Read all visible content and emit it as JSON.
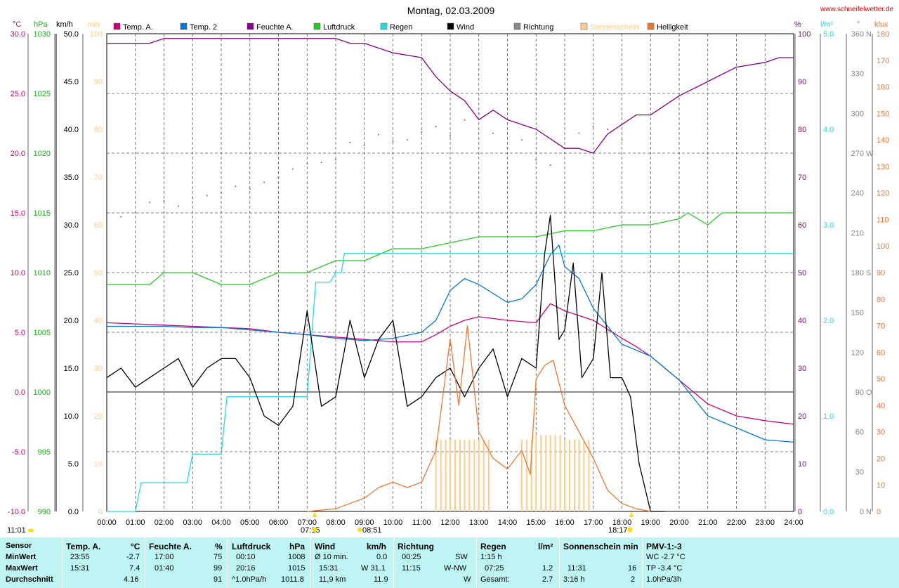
{
  "header": {
    "title": "Montag, 02.03.2009",
    "site": "www.schneifelwetter.de"
  },
  "unit_headers": {
    "temp": "°C",
    "hpa": "hPa",
    "kmh": "km/h",
    "min": "min",
    "percent": "%",
    "rain": "l/m²",
    "deg": "°",
    "klux": "klux"
  },
  "legend": [
    {
      "label": "Temp. A.",
      "color": "#cc0077"
    },
    {
      "label": "Temp. 2",
      "color": "#0077dd"
    },
    {
      "label": "Feuchte A.",
      "color": "#880088"
    },
    {
      "label": "Luftdruck",
      "color": "#22cc22"
    },
    {
      "label": "Regen",
      "color": "#22dddd"
    },
    {
      "label": "Wind",
      "color": "#000000"
    },
    {
      "label": "Richtung",
      "color": "#888888"
    },
    {
      "label": "Sonnenschein",
      "color": "#ffcc88"
    },
    {
      "label": "Helligkeit",
      "color": "#ee7733"
    }
  ],
  "axes": {
    "temp": [
      "30.0",
      "25.0",
      "20.0",
      "15.0",
      "10.0",
      "5.0",
      "0.0",
      "-5.0",
      "-10.0"
    ],
    "hpa": [
      "1030",
      "1025",
      "1020",
      "1015",
      "1010",
      "1005",
      "1000",
      "995",
      "990"
    ],
    "kmh": [
      "50.0",
      "45.0",
      "40.0",
      "35.0",
      "30.0",
      "25.0",
      "20.0",
      "15.0",
      "10.0",
      "5.0",
      "0.0"
    ],
    "min": [
      "100",
      "90",
      "80",
      "70",
      "60",
      "50",
      "40",
      "30",
      "20",
      "10",
      "0"
    ],
    "percent": [
      "100",
      "90",
      "80",
      "70",
      "60",
      "50",
      "40",
      "30",
      "20",
      "10",
      "0"
    ],
    "rain": [
      "5.0",
      "4.0",
      "3.0",
      "2.0",
      "1.0",
      "0.0"
    ],
    "dir": [
      {
        "v": "360",
        "s": "N"
      },
      {
        "v": "330",
        "s": ""
      },
      {
        "v": "300",
        "s": ""
      },
      {
        "v": "270",
        "s": "W"
      },
      {
        "v": "240",
        "s": ""
      },
      {
        "v": "210",
        "s": ""
      },
      {
        "v": "180",
        "s": "S"
      },
      {
        "v": "150",
        "s": ""
      },
      {
        "v": "120",
        "s": ""
      },
      {
        "v": "90",
        "s": "O"
      },
      {
        "v": "60",
        "s": ""
      },
      {
        "v": "30",
        "s": ""
      },
      {
        "v": "0",
        "s": "N"
      }
    ],
    "klux": [
      "180",
      "170",
      "160",
      "150",
      "140",
      "130",
      "120",
      "110",
      "100",
      "90",
      "80",
      "70",
      "60",
      "50",
      "40",
      "30",
      "20",
      "10",
      "0"
    ],
    "time": [
      "00:00",
      "01:00",
      "02:00",
      "03:00",
      "04:00",
      "05:00",
      "06:00",
      "07:00",
      "08:00",
      "09:00",
      "10:00",
      "11:00",
      "12:00",
      "13:00",
      "14:00",
      "15:00",
      "16:00",
      "17:00",
      "18:00",
      "19:00",
      "20:00",
      "21:00",
      "22:00",
      "23:00",
      "24:00"
    ]
  },
  "markers": {
    "sunrise": "07:15",
    "sunset": "18:17",
    "moon": "08:51",
    "left_time": "11:01"
  },
  "chart_data": {
    "type": "line",
    "x_unit": "hour",
    "x_range": [
      0,
      24
    ],
    "series": [
      {
        "name": "Temp. A.",
        "axis": "°C",
        "color": "#cc0077",
        "x": [
          0,
          1,
          2,
          3,
          4,
          5,
          6,
          7,
          8,
          9,
          10,
          11,
          11.5,
          12,
          12.5,
          13,
          14,
          15,
          15.5,
          16,
          17,
          18,
          18.5,
          19,
          20,
          21,
          22,
          23,
          24
        ],
        "y": [
          5.8,
          5.7,
          5.6,
          5.5,
          5.4,
          5.3,
          5.0,
          4.8,
          4.6,
          4.4,
          4.2,
          4.2,
          4.8,
          5.5,
          6.0,
          6.3,
          6.0,
          5.8,
          7.4,
          6.8,
          6.0,
          4.5,
          3.8,
          3.0,
          1.0,
          -1.0,
          -2.0,
          -2.4,
          -2.7
        ]
      },
      {
        "name": "Temp. 2",
        "axis": "°C",
        "color": "#0077dd",
        "x": [
          0,
          1,
          2,
          3,
          4,
          5,
          6,
          7,
          8,
          9,
          10,
          11,
          11.5,
          12,
          12.5,
          13,
          14,
          14.5,
          15,
          15.5,
          15.8,
          16,
          16.5,
          17,
          17.5,
          18,
          19,
          20,
          21,
          22,
          23,
          24
        ],
        "y": [
          5.5,
          5.5,
          5.5,
          5.4,
          5.4,
          5.2,
          5.0,
          4.8,
          4.5,
          4.3,
          4.5,
          5.0,
          6.0,
          8.5,
          9.5,
          9.0,
          7.5,
          7.8,
          9.0,
          11.5,
          12.3,
          10.5,
          9.5,
          7.0,
          5.5,
          4.0,
          3.0,
          1.0,
          -2.0,
          -3.0,
          -4.0,
          -4.2
        ]
      },
      {
        "name": "Feuchte A.",
        "axis": "%",
        "color": "#880088",
        "x": [
          0,
          1.5,
          2,
          3,
          4,
          5,
          6,
          7,
          8,
          8.5,
          9,
          10,
          11,
          11.5,
          12,
          12.5,
          13,
          13.5,
          14,
          15,
          15.5,
          16,
          16.5,
          17,
          17.5,
          18,
          18.5,
          19,
          20,
          21,
          22,
          23,
          23.5,
          24
        ],
        "y": [
          98,
          98,
          99,
          99,
          99,
          99,
          99,
          99,
          99,
          98,
          98,
          96,
          95,
          91,
          88,
          86,
          82,
          84,
          82,
          80,
          78,
          76,
          76,
          75,
          79,
          81,
          83,
          83,
          87,
          90,
          93,
          94,
          95,
          95
        ]
      },
      {
        "name": "Luftdruck",
        "axis": "hPa",
        "color": "#22cc22",
        "x": [
          0,
          1.5,
          2,
          3,
          4,
          5,
          6,
          7,
          8,
          9,
          10,
          11,
          12,
          13,
          14,
          15,
          16,
          17,
          18,
          19,
          20,
          20.3,
          21,
          21.5,
          24
        ],
        "y": [
          1009,
          1009,
          1010,
          1010,
          1009,
          1009,
          1010,
          1010,
          1011,
          1011,
          1012,
          1012,
          1012.5,
          1013,
          1013,
          1013,
          1013.5,
          1013.5,
          1014,
          1014,
          1014.5,
          1015,
          1014,
          1015,
          1015
        ]
      },
      {
        "name": "Regen",
        "axis": "l/m²",
        "color": "#22dddd",
        "x": [
          0,
          1,
          1.2,
          2,
          2.8,
          3,
          4,
          4.2,
          5,
          6,
          7,
          7.3,
          7.8,
          8,
          8.2,
          8.3,
          9,
          10,
          11,
          12,
          24
        ],
        "y": [
          0,
          0,
          0.3,
          0.3,
          0.3,
          0.6,
          0.6,
          1.2,
          1.2,
          1.2,
          1.2,
          2.4,
          2.4,
          2.5,
          2.5,
          2.7,
          2.7,
          2.7,
          2.7,
          2.7,
          2.7
        ]
      },
      {
        "name": "Wind",
        "axis": "km/h",
        "color": "#000000",
        "x": [
          0,
          0.5,
          1,
          1.5,
          2,
          2.5,
          3,
          3.5,
          4,
          4.5,
          5,
          5.5,
          6,
          6.5,
          7,
          7.5,
          8,
          8.5,
          9,
          9.5,
          10,
          10.5,
          11,
          11.5,
          12,
          12.5,
          13,
          13.5,
          14,
          14.5,
          15,
          15.3,
          15.5,
          15.8,
          16,
          16.3,
          16.6,
          17,
          17.3,
          17.6,
          18,
          18.3,
          18.6,
          19,
          19.5
        ],
        "y": [
          14,
          15,
          13,
          14,
          15,
          16,
          13,
          15,
          16,
          16,
          14,
          10,
          9,
          11,
          21,
          11,
          12,
          20,
          14,
          18,
          20,
          11,
          12,
          14,
          15,
          12,
          15,
          17,
          12,
          16,
          15,
          27,
          31,
          18,
          19,
          26,
          14,
          16,
          25,
          14,
          14,
          12,
          5,
          0,
          0
        ]
      },
      {
        "name": "Richtung",
        "axis": "°",
        "color": "#888888",
        "x": [
          0.5,
          1,
          1.5,
          2,
          2.5,
          3,
          3.5,
          4,
          4.5,
          5,
          5.5,
          6,
          6.5,
          7,
          7.5,
          8,
          8.5,
          9,
          9.5,
          10,
          10.5,
          11,
          11.5,
          12,
          12.5,
          13,
          13.5,
          14,
          14.5,
          15,
          15.5,
          16,
          16.5,
          17,
          17.5,
          18
        ],
        "y": [
          222,
          225,
          233,
          234,
          230,
          236,
          238,
          240,
          245,
          243,
          248,
          252,
          258,
          262,
          263,
          265,
          278,
          276,
          284,
          279,
          280,
          286,
          290,
          283,
          295,
          300,
          285,
          274,
          280,
          265,
          261,
          270,
          285,
          290,
          288,
          280
        ]
      },
      {
        "name": "Sonnenschein",
        "axis": "min",
        "color": "#ffcc88",
        "x": [
          11.5,
          12,
          12.5,
          13,
          14.5,
          15,
          15.5,
          16,
          16.5
        ],
        "y": [
          15,
          15,
          15,
          15,
          15,
          16,
          16,
          15,
          15
        ]
      },
      {
        "name": "Helligkeit",
        "axis": "klux",
        "color": "#ee7733",
        "x": [
          7,
          8,
          9,
          9.5,
          10,
          10.5,
          11,
          11.5,
          12,
          12.3,
          12.6,
          13,
          13.5,
          14,
          14.5,
          14.8,
          15,
          15.3,
          15.6,
          16,
          16.5,
          17,
          17.5,
          18,
          18.5,
          19
        ],
        "y": [
          0,
          1,
          5,
          9,
          11,
          9,
          11,
          23,
          65,
          40,
          70,
          30,
          20,
          16,
          23,
          14,
          50,
          55,
          57,
          40,
          30,
          20,
          8,
          3,
          1,
          0
        ]
      }
    ],
    "ylim_temp": [
      -10,
      30
    ],
    "ylim_hpa": [
      990,
      1030
    ],
    "ylim_kmh": [
      0,
      50
    ],
    "ylim_min": [
      0,
      100
    ],
    "ylim_percent": [
      0,
      100
    ],
    "ylim_rain": [
      0,
      5
    ],
    "ylim_dir": [
      0,
      360
    ],
    "ylim_klux": [
      0,
      180
    ],
    "grid": true,
    "legend_position": "top"
  },
  "table": {
    "rows": [
      "Sensor",
      "MinWert",
      "MaxWert",
      "Durchschnitt"
    ],
    "temp": {
      "title": "Temp. A.",
      "unit": "°C",
      "min_time": "23:55",
      "min": "-2.7",
      "max_time": "15:31",
      "max": "7.4",
      "avg": "4.16"
    },
    "hum": {
      "title": "Feuchte A.",
      "unit": "%",
      "min_time": "17:00",
      "min": "75",
      "max_time": "01:40",
      "max": "99",
      "avg": "91"
    },
    "press": {
      "title": "Luftdruck",
      "unit": "hPa",
      "min_time": "00:10",
      "min": "1008",
      "max_time": "20:16",
      "max": "1015",
      "avg_label": "^1.0hPa/h",
      "avg": "1011.8"
    },
    "wind": {
      "title": "Wind",
      "unit": "km/h",
      "min_label": "Ø 10 min.",
      "min": "0.0",
      "max_time": "15:31",
      "max": "W 31.1",
      "avg_label": "11,9 km",
      "avg": "11.9"
    },
    "dir": {
      "title": "Richtung",
      "min_time": "00:25",
      "min": "SW",
      "max_time": "11:15",
      "max": "W-NW",
      "avg": "W"
    },
    "rain": {
      "title": "Regen",
      "unit": "l/m²",
      "min_time": "1:15 h",
      "max_time": "07:25",
      "max": "1.2",
      "avg_label": "Gesamt:",
      "avg": "2.7"
    },
    "sun": {
      "title": "Sonnenschein min",
      "max_time": "11:31",
      "max": "16",
      "avg_label": "3:16 h",
      "avg": "2"
    },
    "pmv": {
      "title": "PMV-1:-3",
      "min": "WC -2.7 °C",
      "max": "TP -3.4 °C",
      "avg": "1.0hPa/3h"
    }
  }
}
